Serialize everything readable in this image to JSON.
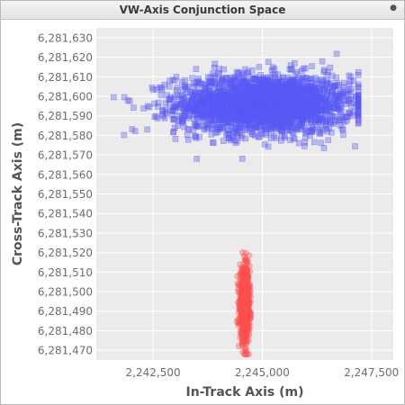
{
  "window": {
    "title": "VW-Axis Conjunction Space",
    "menu_icon": "window-menu-dot-icon"
  },
  "colors": {
    "plot_background": "#ebebeb",
    "gridline": "#ffffff",
    "primary_fill": "#5a5af5",
    "secondary_fill": "#ff5050",
    "axis_text": "#6e6e6e",
    "axis_label": "#555555"
  },
  "chart_data": {
    "type": "scatter",
    "title": "",
    "xlabel": "In-Track Axis (m)",
    "ylabel": "Cross-Track Axis (m)",
    "xlim": [
      2241200,
      2248000
    ],
    "ylim": [
      6281465,
      6281635
    ],
    "x_ticks": [
      2242500,
      2245000,
      2247500
    ],
    "x_tick_labels": [
      "2,242,500",
      "2,245,000",
      "2,247,500"
    ],
    "y_ticks": [
      6281470,
      6281480,
      6281490,
      6281500,
      6281510,
      6281520,
      6281530,
      6281540,
      6281550,
      6281560,
      6281570,
      6281580,
      6281590,
      6281600,
      6281610,
      6281620,
      6281630
    ],
    "y_tick_labels": [
      "6,281,470",
      "6,281,480",
      "6,281,490",
      "6,281,500",
      "6,281,510",
      "6,281,520",
      "6,281,530",
      "6,281,540",
      "6,281,550",
      "6,281,560",
      "6,281,570",
      "6,281,580",
      "6,281,590",
      "6,281,600",
      "6,281,610",
      "6,281,620",
      "6,281,630"
    ],
    "grid": true,
    "legend": "none",
    "series": [
      {
        "marker": "square",
        "color": "#5a5af5",
        "opacity": 0.35,
        "distribution": {
          "x_mean": 2245050,
          "x_sd": 1000,
          "y_mean": 6281596,
          "y_sd": 7.5,
          "x_min": 2241600,
          "x_max": 2247200,
          "y_min": 6281568,
          "y_max": 6281630
        },
        "n_points": 2500
      },
      {
        "marker": "circle",
        "color": "#ff5050",
        "opacity": 0.35,
        "distribution": {
          "x_mean": 2244600,
          "x_sd": 55,
          "y_mean": 6281493,
          "y_sd": 9,
          "x_min": 2244400,
          "x_max": 2244800,
          "y_min": 6281468,
          "y_max": 6281521
        },
        "n_points": 800
      }
    ]
  }
}
